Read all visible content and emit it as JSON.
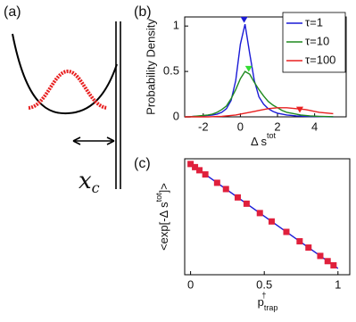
{
  "panel_a": {
    "panel_label": "(a)",
    "distance_label": {
      "base": "x",
      "sub": "c"
    }
  },
  "chart_data": [
    {
      "type": "line",
      "panel_label": "(b)",
      "x_label": {
        "text": "Δ s",
        "sup": "tot"
      },
      "y_label": "Probability Density",
      "x": [
        -3,
        -2.75,
        -2.5,
        -2.25,
        -2,
        -1.75,
        -1.5,
        -1.25,
        -1,
        -0.75,
        -0.5,
        -0.25,
        0,
        0.25,
        0.5,
        0.75,
        1,
        1.25,
        1.5,
        1.75,
        2,
        2.25,
        2.5,
        2.75,
        3,
        3.25,
        3.5,
        3.75,
        4,
        4.25,
        4.5,
        4.75,
        5
      ],
      "series": [
        {
          "name": "τ=1",
          "color": "#1a1ad6",
          "values": [
            0,
            0,
            0.005,
            0.005,
            0.01,
            0.015,
            0.02,
            0.03,
            0.05,
            0.09,
            0.18,
            0.4,
            0.8,
            1.02,
            0.7,
            0.4,
            0.22,
            0.14,
            0.09,
            0.06,
            0.04,
            0.03,
            0.02,
            0.015,
            0.01,
            0.008,
            0.006,
            0.005,
            0.004,
            0.003,
            0.002,
            0.001,
            0
          ],
          "marker": {
            "x": 0.2,
            "y": 1.07
          }
        },
        {
          "name": "τ=10",
          "color": "#1f8a1f",
          "values": [
            0,
            0,
            0.005,
            0.01,
            0.015,
            0.02,
            0.03,
            0.05,
            0.08,
            0.12,
            0.2,
            0.3,
            0.42,
            0.5,
            0.47,
            0.38,
            0.3,
            0.23,
            0.17,
            0.13,
            0.1,
            0.07,
            0.05,
            0.04,
            0.03,
            0.02,
            0.015,
            0.01,
            0.008,
            0.006,
            0.004,
            0.003,
            0.002
          ],
          "marker": {
            "x": 0.45,
            "y": 0.53
          },
          "marker_color": "#33dd33"
        },
        {
          "name": "τ=100",
          "color": "#e82020",
          "values": [
            0,
            0,
            0,
            0,
            0,
            0,
            0.002,
            0.004,
            0.006,
            0.01,
            0.015,
            0.02,
            0.03,
            0.04,
            0.05,
            0.06,
            0.07,
            0.08,
            0.09,
            0.095,
            0.1,
            0.1,
            0.1,
            0.095,
            0.09,
            0.085,
            0.08,
            0.07,
            0.06,
            0.05,
            0.045,
            0.04,
            0.035
          ],
          "marker": {
            "x": 3.2,
            "y": 0.08
          }
        }
      ],
      "xlim": [
        -3,
        5.7
      ],
      "ylim": [
        0,
        1.1
      ],
      "xticks": [
        -2,
        0,
        2,
        4
      ],
      "yticks": [
        0,
        0.5,
        1
      ],
      "legend": "upper right",
      "grid": false
    },
    {
      "type": "scatter",
      "panel_label": "(c)",
      "x_label": {
        "text": "p",
        "sub": "trap",
        "sup": "†"
      },
      "y_label": {
        "text": "<exp[-Δ s",
        "sup": "tot",
        "end": "]>"
      },
      "x": [
        0,
        0.03,
        0.06,
        0.1,
        0.18,
        0.24,
        0.32,
        0.38,
        0.47,
        0.55,
        0.65,
        0.74,
        0.8,
        0.88,
        0.93,
        0.97
      ],
      "series": [
        {
          "color": "#e0203c",
          "values": [
            1,
            0.97,
            0.94,
            0.9,
            0.82,
            0.76,
            0.68,
            0.62,
            0.53,
            0.45,
            0.35,
            0.26,
            0.2,
            0.12,
            0.07,
            0.03
          ]
        }
      ],
      "fit_line": {
        "color": "#1a1ad6",
        "x": [
          0,
          1
        ],
        "values": [
          1,
          0
        ]
      },
      "xlim": [
        -0.04,
        1.08
      ],
      "ylim": [
        -0.06,
        1.05
      ],
      "xticks": [
        0,
        0.5,
        1
      ],
      "yticks": [],
      "grid": false
    }
  ]
}
